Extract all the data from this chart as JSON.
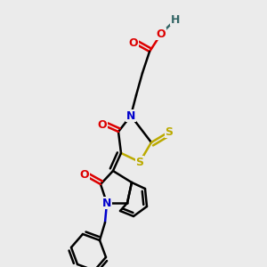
{
  "bg_color": "#ebebeb",
  "atom_colors": {
    "C": "#000000",
    "N": "#0000cc",
    "O": "#dd0000",
    "S": "#bbaa00",
    "H": "#336666"
  },
  "bond_color": "#000000",
  "bond_width": 1.8,
  "fig_bg": "#ebebeb"
}
